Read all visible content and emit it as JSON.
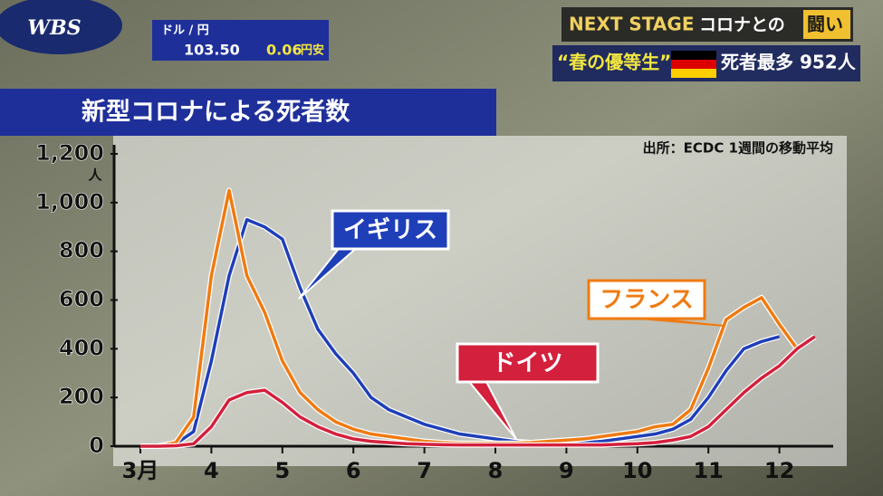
{
  "header": {
    "logo": "WBS",
    "fx_label": "ドル / 円",
    "fx_rate": "103.50",
    "fx_change": "0.06",
    "fx_direction": "円安",
    "series_title": "NEXT STAGE",
    "series_subtitle": "コロナとの",
    "series_subtitle_highlight": "闘い",
    "headline_quote": "“春の優等生”",
    "headline": "死者最多 952人"
  },
  "chart_data": {
    "type": "line",
    "title": "新型コロナによる死者数",
    "source": "出所：ECDC 1週間の移動平均",
    "y_unit": "人",
    "categories": [
      "3月",
      null,
      null,
      null,
      "4",
      null,
      null,
      null,
      "5",
      null,
      null,
      null,
      "6",
      null,
      null,
      null,
      "7",
      null,
      null,
      null,
      "8",
      null,
      null,
      null,
      "9",
      null,
      null,
      null,
      "10",
      null,
      null,
      null,
      "11",
      null,
      null,
      null,
      "12",
      null,
      null
    ],
    "ylim": [
      0,
      1200
    ],
    "yticks": [
      0,
      200,
      400,
      600,
      800,
      {
        "value": 1000,
        "label": "1,000"
      },
      {
        "value": 1200,
        "label": "1,200"
      }
    ],
    "series": [
      {
        "name": "イギリス",
        "color": "#1f3fb8",
        "values": [
          0,
          0,
          10,
          60,
          350,
          700,
          930,
          900,
          850,
          650,
          480,
          380,
          300,
          200,
          150,
          120,
          90,
          70,
          50,
          40,
          30,
          20,
          15,
          12,
          10,
          15,
          20,
          30,
          40,
          50,
          70,
          110,
          200,
          310,
          400,
          430,
          450,
          null,
          null
        ]
      },
      {
        "name": "フランス",
        "color": "#f07a10",
        "values": [
          0,
          0,
          15,
          120,
          700,
          1050,
          700,
          550,
          350,
          220,
          150,
          100,
          70,
          50,
          40,
          30,
          20,
          15,
          12,
          12,
          12,
          12,
          15,
          20,
          25,
          30,
          40,
          50,
          60,
          80,
          90,
          150,
          320,
          520,
          570,
          610,
          500,
          400,
          null
        ]
      },
      {
        "name": "ドイツ",
        "color": "#d3203c",
        "values": [
          0,
          0,
          2,
          10,
          80,
          190,
          220,
          230,
          180,
          120,
          80,
          50,
          30,
          20,
          15,
          10,
          8,
          6,
          5,
          5,
          5,
          5,
          5,
          5,
          5,
          5,
          5,
          8,
          10,
          15,
          25,
          40,
          80,
          150,
          220,
          280,
          330,
          400,
          450
        ]
      }
    ]
  }
}
